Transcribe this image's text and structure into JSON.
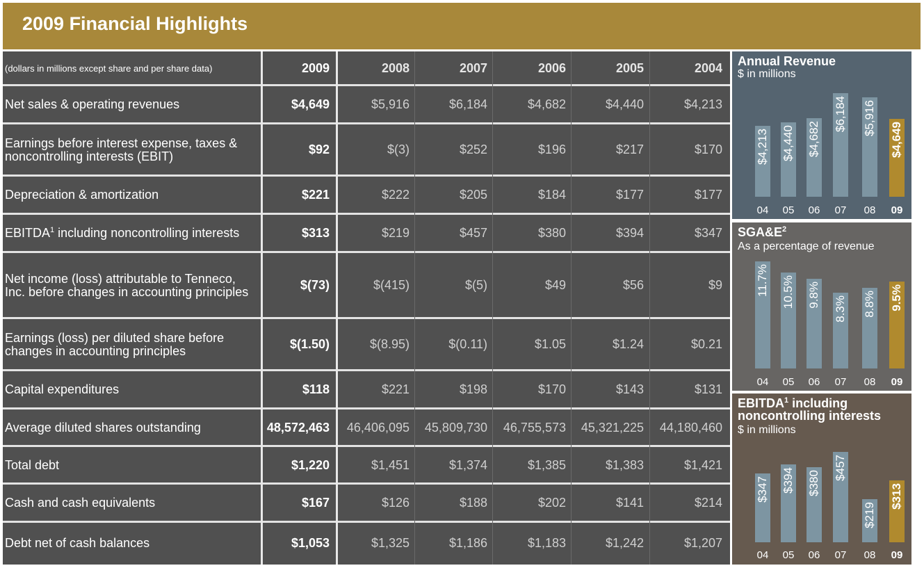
{
  "title": "2009 Financial Highlights",
  "table": {
    "header_note": "(dollars in millions except share and per share data)",
    "years": [
      "2009",
      "2008",
      "2007",
      "2006",
      "2005",
      "2004"
    ],
    "rows": [
      {
        "label": "Net sales & operating revenues",
        "values": [
          "$4,649",
          "$5,916",
          "$6,184",
          "$4,682",
          "$4,440",
          "$4,213"
        ]
      },
      {
        "label": "Earnings before interest expense, taxes & noncontrolling interests (EBIT)",
        "values": [
          "$92",
          "$(3)",
          "$252",
          "$196",
          "$217",
          "$170"
        ]
      },
      {
        "label": "Depreciation & amortization",
        "values": [
          "$221",
          "$222",
          "$205",
          "$184",
          "$177",
          "$177"
        ]
      },
      {
        "label": "EBITDA",
        "label_sup": "1",
        "label_rest": " including noncontrolling interests",
        "values": [
          "$313",
          "$219",
          "$457",
          "$380",
          "$394",
          "$347"
        ]
      },
      {
        "label": "Net income (loss) attributable to Tenneco, Inc. before changes in accounting principles",
        "values": [
          "$(73)",
          "$(415)",
          "$(5)",
          "$49",
          "$56",
          "$9"
        ]
      },
      {
        "label": "Earnings (loss) per diluted share before changes in accounting principles",
        "values": [
          "$(1.50)",
          "$(8.95)",
          "$(0.11)",
          "$1.05",
          "$1.24",
          "$0.21"
        ]
      },
      {
        "label": "Capital expenditures",
        "values": [
          "$118",
          "$221",
          "$198",
          "$170",
          "$143",
          "$131"
        ]
      },
      {
        "label": "Average diluted shares outstanding",
        "values": [
          "48,572,463",
          "46,406,095",
          "45,809,730",
          "46,755,573",
          "45,321,225",
          "44,180,460"
        ]
      },
      {
        "label": "Total debt",
        "values": [
          "$1,220",
          "$1,451",
          "$1,374",
          "$1,385",
          "$1,383",
          "$1,421"
        ]
      },
      {
        "label": "Cash and cash equivalents",
        "values": [
          "$167",
          "$126",
          "$188",
          "$202",
          "$141",
          "$214"
        ]
      },
      {
        "label": "Debt net of cash balances",
        "values": [
          "$1,053",
          "$1,325",
          "$1,186",
          "$1,183",
          "$1,242",
          "$1,207"
        ]
      }
    ]
  },
  "chart_data": [
    {
      "type": "bar",
      "title": "Annual Revenue",
      "subtitle": "$ in millions",
      "categories": [
        "04",
        "05",
        "06",
        "07",
        "08",
        "09"
      ],
      "values": [
        4213,
        4440,
        4682,
        6184,
        5916,
        4649
      ],
      "labels": [
        "$4,213",
        "$4,440",
        "$4,682",
        "$6,184",
        "$5,916",
        "$4,649"
      ],
      "ylim": [
        0,
        6300
      ],
      "highlight_index": 5,
      "bar_color": "#7d95a2",
      "highlight_color": "#b08a2e",
      "background": "#556470"
    },
    {
      "type": "bar",
      "title": "SGA&E",
      "title_sup": "2",
      "subtitle": "As a percentage of revenue",
      "categories": [
        "04",
        "05",
        "06",
        "07",
        "08",
        "09"
      ],
      "values": [
        11.7,
        10.5,
        9.8,
        8.3,
        8.8,
        9.5
      ],
      "labels": [
        "11.7%",
        "10.5%",
        "9.8%",
        "8.3%",
        "8.8%",
        "9.5%"
      ],
      "ylim": [
        0,
        12
      ],
      "highlight_index": 5,
      "bar_color": "#7d95a2",
      "highlight_color": "#b08a2e",
      "background": "#676563"
    },
    {
      "type": "bar",
      "title": "EBITDA",
      "title_sup": "1",
      "title_rest": " including noncontrolling interests",
      "subtitle": "$ in millions",
      "categories": [
        "04",
        "05",
        "06",
        "07",
        "08",
        "09"
      ],
      "values": [
        347,
        394,
        380,
        457,
        219,
        313
      ],
      "labels": [
        "$347",
        "$394",
        "$380",
        "$457",
        "$219",
        "$313"
      ],
      "ylim": [
        0,
        470
      ],
      "highlight_index": 5,
      "bar_color": "#7d95a2",
      "highlight_color": "#b08a2e",
      "background": "#665a4f"
    }
  ]
}
